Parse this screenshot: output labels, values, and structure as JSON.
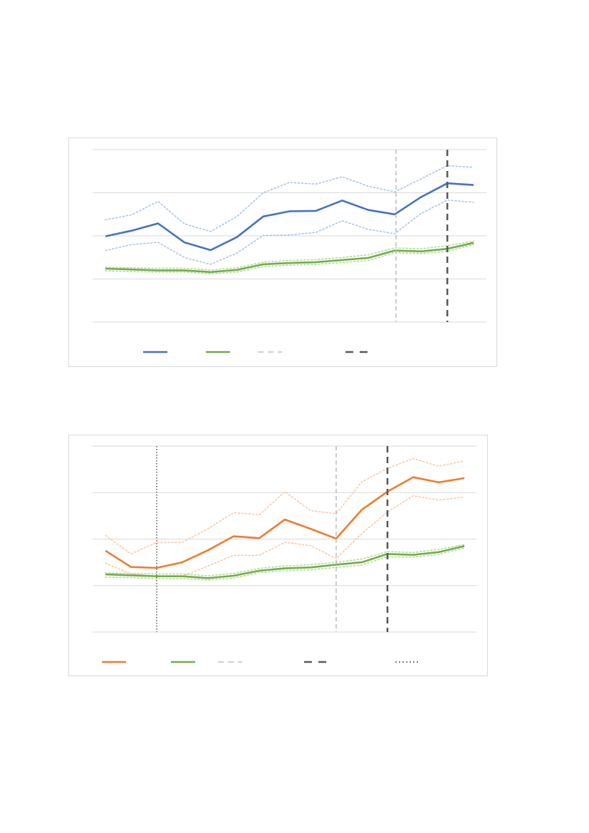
{
  "colors": {
    "blue": "#4472c4",
    "blue_ci": "#a9c4e8",
    "green": "#70ad47",
    "green_ci": "#b4d99a",
    "orange": "#ed7d31",
    "orange_ci": "#f8c9a8",
    "gridline": "#d9d9d9",
    "light_dash": "#bfbfbf",
    "dark_dash": "#595959",
    "dotted": "#7f7f7f",
    "border": "#d9d9d9"
  },
  "chart_data": [
    {
      "type": "line",
      "title": "",
      "xlabel": "",
      "ylabel": "",
      "x": [
        1,
        2,
        3,
        4,
        5,
        6,
        7,
        8,
        9,
        10,
        11,
        12,
        13,
        14,
        15
      ],
      "ylim": [
        0,
        4
      ],
      "yticks": [
        0,
        1,
        2,
        3,
        4
      ],
      "grid": true,
      "legend": "bottom",
      "series": [
        {
          "key": "blue",
          "style": "solid",
          "values": [
            1.99,
            2.12,
            2.29,
            1.85,
            1.67,
            1.97,
            2.45,
            2.57,
            2.58,
            2.82,
            2.6,
            2.5,
            2.9,
            3.22,
            3.18
          ]
        },
        {
          "key": "blue_ci",
          "style": "dotted",
          "values": [
            2.37,
            2.49,
            2.8,
            2.28,
            2.1,
            2.45,
            3.0,
            3.24,
            3.2,
            3.37,
            3.15,
            3.02,
            3.32,
            3.63,
            3.59
          ]
        },
        {
          "key": "blue_ci",
          "style": "dotted",
          "values": [
            1.66,
            1.8,
            1.85,
            1.5,
            1.34,
            1.6,
            2.01,
            2.02,
            2.08,
            2.35,
            2.15,
            2.05,
            2.52,
            2.83,
            2.78
          ]
        },
        {
          "key": "green",
          "style": "solid",
          "values": [
            1.24,
            1.22,
            1.2,
            1.2,
            1.16,
            1.21,
            1.34,
            1.37,
            1.39,
            1.44,
            1.49,
            1.66,
            1.64,
            1.7,
            1.84
          ]
        },
        {
          "key": "green_ci",
          "style": "dotted",
          "values": [
            1.27,
            1.26,
            1.25,
            1.25,
            1.21,
            1.26,
            1.39,
            1.43,
            1.45,
            1.5,
            1.56,
            1.72,
            1.7,
            1.77,
            1.88
          ]
        },
        {
          "key": "green_ci",
          "style": "dotted",
          "values": [
            1.19,
            1.17,
            1.16,
            1.16,
            1.12,
            1.16,
            1.29,
            1.32,
            1.34,
            1.38,
            1.43,
            1.61,
            1.59,
            1.64,
            1.8
          ]
        }
      ],
      "vlines": [
        {
          "x": 12.05,
          "style": "light-dash"
        },
        {
          "x": 14.0,
          "style": "dark-dash"
        }
      ],
      "legend_entries": [
        {
          "key": "blue",
          "style": "solid",
          "label": ""
        },
        {
          "key": "green",
          "style": "solid",
          "label": ""
        },
        {
          "key": "light_dash",
          "style": "light-dash",
          "label": ""
        },
        {
          "key": "dark_dash",
          "style": "dark-dash",
          "label": ""
        }
      ]
    },
    {
      "type": "line",
      "title": "",
      "xlabel": "",
      "ylabel": "",
      "x": [
        1,
        2,
        3,
        4,
        5,
        6,
        7,
        8,
        9,
        10,
        11,
        12,
        13,
        14,
        15
      ],
      "ylim": [
        0,
        4
      ],
      "yticks": [
        0,
        1,
        2,
        3,
        4
      ],
      "grid": true,
      "legend": "bottom",
      "series": [
        {
          "key": "orange",
          "style": "solid",
          "values": [
            1.75,
            1.4,
            1.38,
            1.5,
            1.76,
            2.06,
            2.02,
            2.42,
            2.22,
            2.01,
            2.63,
            3.02,
            3.33,
            3.22,
            3.31
          ]
        },
        {
          "key": "orange_ci",
          "style": "dotted",
          "values": [
            2.08,
            1.68,
            1.93,
            1.93,
            2.22,
            2.57,
            2.52,
            3.02,
            2.61,
            2.55,
            3.23,
            3.52,
            3.73,
            3.57,
            3.68
          ]
        },
        {
          "key": "orange_ci",
          "style": "dotted",
          "values": [
            1.48,
            1.25,
            1.2,
            1.2,
            1.42,
            1.65,
            1.65,
            1.93,
            1.86,
            1.58,
            2.12,
            2.58,
            2.93,
            2.84,
            2.9
          ]
        },
        {
          "key": "green",
          "style": "solid",
          "values": [
            1.24,
            1.22,
            1.2,
            1.2,
            1.16,
            1.21,
            1.32,
            1.37,
            1.39,
            1.45,
            1.5,
            1.68,
            1.66,
            1.72,
            1.85
          ]
        },
        {
          "key": "green_ci",
          "style": "dotted",
          "values": [
            1.27,
            1.26,
            1.25,
            1.25,
            1.21,
            1.26,
            1.37,
            1.42,
            1.45,
            1.5,
            1.57,
            1.73,
            1.71,
            1.78,
            1.88
          ]
        },
        {
          "key": "green_ci",
          "style": "dotted",
          "values": [
            1.18,
            1.17,
            1.15,
            1.15,
            1.12,
            1.16,
            1.28,
            1.32,
            1.34,
            1.39,
            1.44,
            1.62,
            1.61,
            1.67,
            1.81
          ]
        }
      ],
      "vlines": [
        {
          "x": 3.0,
          "style": "dotted"
        },
        {
          "x": 10.0,
          "style": "light-dash"
        },
        {
          "x": 12.0,
          "style": "dark-dash"
        }
      ],
      "legend_entries": [
        {
          "key": "orange",
          "style": "solid",
          "label": ""
        },
        {
          "key": "green",
          "style": "solid",
          "label": ""
        },
        {
          "key": "light_dash",
          "style": "light-dash",
          "label": ""
        },
        {
          "key": "dark_dash",
          "style": "dark-dash",
          "label": ""
        },
        {
          "key": "dotted",
          "style": "dotted",
          "label": ""
        }
      ]
    }
  ]
}
